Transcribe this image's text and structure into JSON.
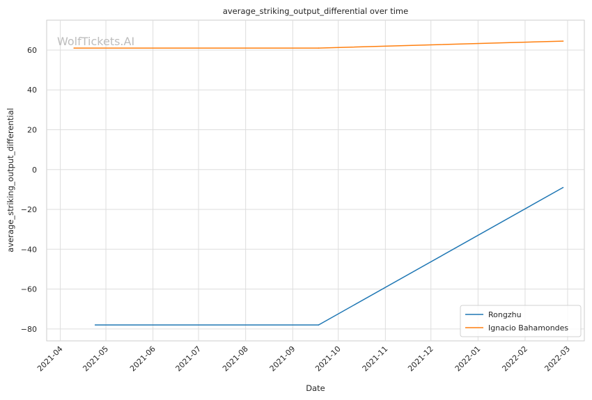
{
  "chart_data": {
    "type": "line",
    "title": "average_striking_output_differential over time",
    "xlabel": "Date",
    "ylabel": "average_striking_output_differential",
    "watermark": "WolfTickets.AI",
    "x_ticks": [
      "2021-04",
      "2021-05",
      "2021-06",
      "2021-07",
      "2021-08",
      "2021-09",
      "2021-10",
      "2021-11",
      "2021-12",
      "2022-01",
      "2022-02",
      "2022-03"
    ],
    "y_ticks": [
      60,
      40,
      20,
      0,
      -20,
      -40,
      -60,
      -80
    ],
    "xlim": [
      "2021-03-23",
      "2022-03-12"
    ],
    "ylim": [
      -86,
      75
    ],
    "grid": true,
    "legend_position": "bottom-right",
    "series": [
      {
        "name": "Rongzhu",
        "color": "#1f77b4",
        "points": [
          {
            "x": "2021-04-24",
            "y": -78
          },
          {
            "x": "2021-09-18",
            "y": -78
          },
          {
            "x": "2022-02-26",
            "y": -9
          }
        ]
      },
      {
        "name": "Ignacio Bahamondes",
        "color": "#ff7f0e",
        "points": [
          {
            "x": "2021-04-10",
            "y": 61
          },
          {
            "x": "2021-09-18",
            "y": 61
          },
          {
            "x": "2022-02-26",
            "y": 64.5
          }
        ]
      }
    ]
  }
}
